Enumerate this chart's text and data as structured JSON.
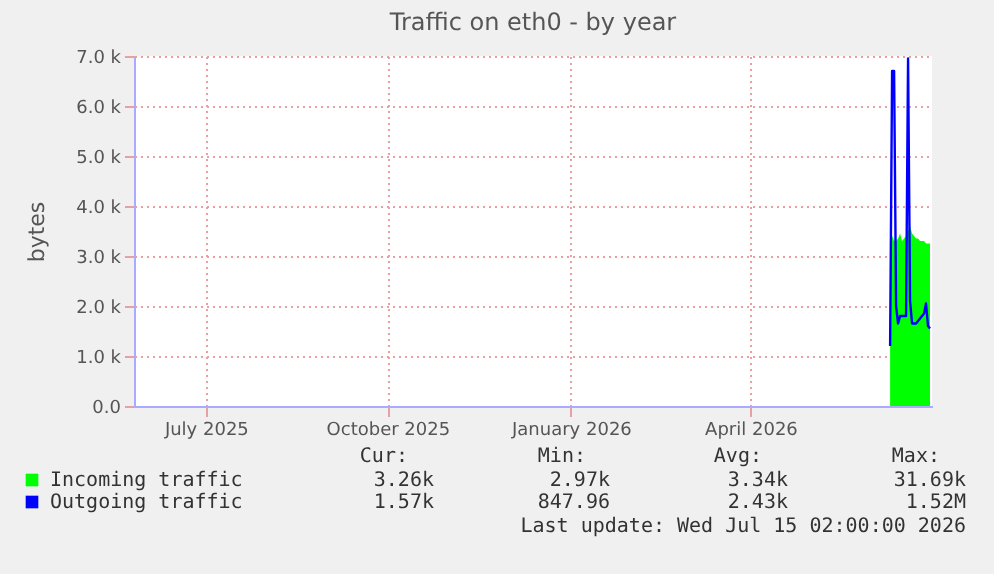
{
  "chart_data": {
    "type": "area",
    "title": "Traffic on eth0 - by year",
    "ylabel": "bytes",
    "x": [
      "2026-06-24",
      "2026-06-25",
      "2026-06-26",
      "2026-06-27",
      "2026-06-28",
      "2026-06-29",
      "2026-06-30",
      "2026-07-01",
      "2026-07-02",
      "2026-07-03",
      "2026-07-04",
      "2026-07-05",
      "2026-07-06",
      "2026-07-07",
      "2026-07-08",
      "2026-07-09",
      "2026-07-10",
      "2026-07-11",
      "2026-07-12",
      "2026-07-13",
      "2026-07-14"
    ],
    "series": [
      {
        "name": "Incoming traffic",
        "color": "#00ff00",
        "values": [
          3350,
          3400,
          3300,
          3300,
          3350,
          3450,
          3300,
          3350,
          3400,
          3500,
          3600,
          3450,
          3400,
          3350,
          3350,
          3300,
          3300,
          3300,
          3250,
          3250,
          3250
        ]
      },
      {
        "name": "Outgoing traffic",
        "type": "line",
        "color": "#0000ff",
        "values": [
          1200,
          6700,
          6700,
          2000,
          1650,
          1800,
          1800,
          1800,
          1800,
          6950,
          2100,
          1650,
          1650,
          1650,
          1700,
          1750,
          1800,
          1850,
          2050,
          1600,
          1550
        ]
      }
    ],
    "xlim": [
      "2025-06-10",
      "2026-07-15"
    ],
    "xticks": [
      {
        "value": "2025-07-16",
        "label": "July 2025"
      },
      {
        "value": "2025-10-15",
        "label": "October 2025"
      },
      {
        "value": "2026-01-15",
        "label": "January 2026"
      },
      {
        "value": "2026-04-15",
        "label": "April 2026"
      }
    ],
    "ylim": [
      0,
      7000
    ],
    "yticks": [
      {
        "value": 0,
        "label": "0.0"
      },
      {
        "value": 1000,
        "label": "1.0 k"
      },
      {
        "value": 2000,
        "label": "2.0 k"
      },
      {
        "value": 3000,
        "label": "3.0 k"
      },
      {
        "value": 4000,
        "label": "4.0 k"
      },
      {
        "value": 5000,
        "label": "5.0 k"
      },
      {
        "value": 6000,
        "label": "6.0 k"
      },
      {
        "value": 7000,
        "label": "7.0 k"
      }
    ],
    "grid": true,
    "legend": "bottom",
    "annotations": [
      "Cur:",
      "Min:",
      "Avg:",
      "Max:",
      "3.26k",
      "2.97k",
      "3.34k",
      "31.69k",
      "1.57k",
      "847.96",
      "2.43k",
      "1.52M",
      "Last update: Wed Jul 15 02:00:00 2026"
    ]
  }
}
